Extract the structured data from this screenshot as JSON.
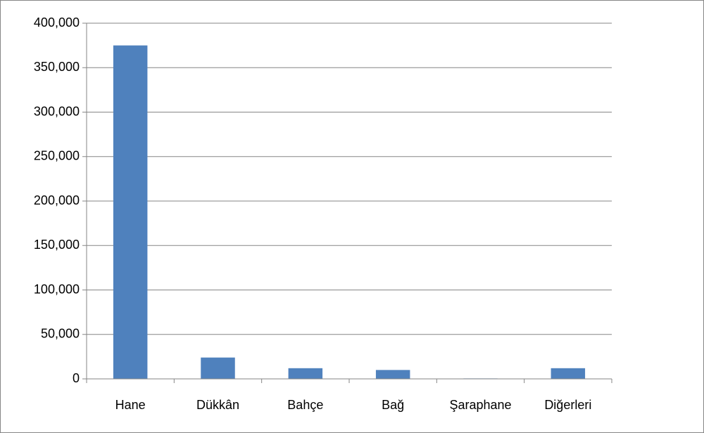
{
  "chart_data": {
    "type": "bar",
    "categories": [
      "Hane",
      "Dükkân",
      "Bahçe",
      "Bağ",
      "Şaraphane",
      "Diğerleri"
    ],
    "values": [
      375000,
      24000,
      12000,
      10000,
      500,
      12000
    ],
    "color": "#4f81bd",
    "ylim": [
      0,
      400000
    ],
    "yticks": [
      0,
      {
        "value": 50000,
        "label": "50,000"
      },
      {
        "value": 100000,
        "label": "100,000"
      },
      {
        "value": 150000,
        "label": "150,000"
      },
      {
        "value": 200000,
        "label": "200,000"
      },
      {
        "value": 250000,
        "label": "250,000"
      },
      {
        "value": 300000,
        "label": "300,000"
      },
      {
        "value": 350000,
        "label": "350,000"
      },
      {
        "value": 400000,
        "label": "400,000"
      }
    ],
    "grid": true
  }
}
